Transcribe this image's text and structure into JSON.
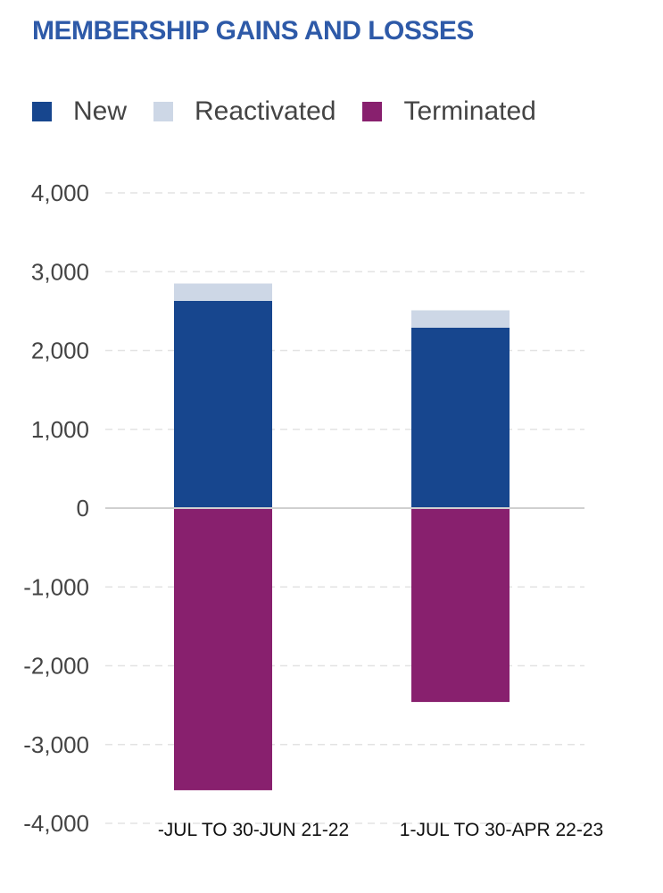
{
  "chart_data": {
    "type": "bar",
    "stacked": true,
    "title": "MEMBERSHIP GAINS AND LOSSES",
    "categories": [
      "-JUL TO 30-JUN 21-22",
      "1-JUL TO 30-APR 22-23"
    ],
    "series": [
      {
        "name": "New",
        "values": [
          2630,
          2290
        ],
        "color": "#17468e"
      },
      {
        "name": "Reactivated",
        "values": [
          220,
          220
        ],
        "color": "#cdd7e6"
      },
      {
        "name": "Terminated",
        "values": [
          -3580,
          -2460
        ],
        "color": "#88206e"
      }
    ],
    "ylim": [
      -4000,
      4000
    ],
    "yticks": [
      4000,
      3000,
      2000,
      1000,
      0,
      -1000,
      -2000,
      -3000,
      -4000
    ],
    "ytick_labels": [
      "4,000",
      "3,000",
      "2,000",
      "1,000",
      "0",
      "-1,000",
      "-2,000",
      "-3,000",
      "-4,000"
    ],
    "grid": true,
    "legend": "top-left"
  }
}
